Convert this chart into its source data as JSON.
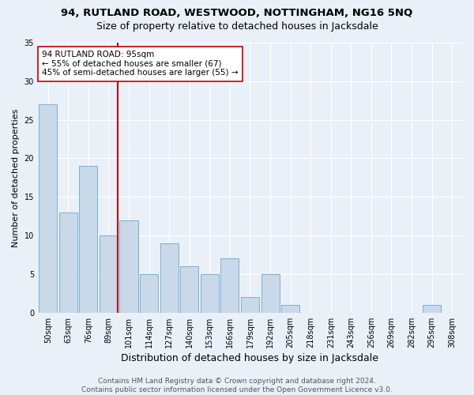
{
  "title1": "94, RUTLAND ROAD, WESTWOOD, NOTTINGHAM, NG16 5NQ",
  "title2": "Size of property relative to detached houses in Jacksdale",
  "xlabel": "Distribution of detached houses by size in Jacksdale",
  "ylabel": "Number of detached properties",
  "categories": [
    "50sqm",
    "63sqm",
    "76sqm",
    "89sqm",
    "101sqm",
    "114sqm",
    "127sqm",
    "140sqm",
    "153sqm",
    "166sqm",
    "179sqm",
    "192sqm",
    "205sqm",
    "218sqm",
    "231sqm",
    "243sqm",
    "256sqm",
    "269sqm",
    "282sqm",
    "295sqm",
    "308sqm"
  ],
  "values": [
    27,
    13,
    19,
    10,
    12,
    5,
    9,
    6,
    5,
    7,
    2,
    5,
    1,
    0,
    0,
    0,
    0,
    0,
    0,
    1,
    0
  ],
  "bar_color": "#c9d9ea",
  "bar_edge_color": "#7bafd4",
  "highlight_color": "#c00000",
  "annotation_text": "94 RUTLAND ROAD: 95sqm\n← 55% of detached houses are smaller (67)\n45% of semi-detached houses are larger (55) →",
  "annotation_box_color": "white",
  "annotation_box_edge": "#c00000",
  "vline_x": 3.45,
  "ylim": [
    0,
    35
  ],
  "yticks": [
    0,
    5,
    10,
    15,
    20,
    25,
    30,
    35
  ],
  "footnote": "Contains HM Land Registry data © Crown copyright and database right 2024.\nContains public sector information licensed under the Open Government Licence v3.0.",
  "background_color": "#eaf0f8",
  "plot_bg_color": "#eaf0f8",
  "grid_color": "white",
  "title1_fontsize": 9.5,
  "title2_fontsize": 9,
  "xlabel_fontsize": 9,
  "ylabel_fontsize": 8,
  "tick_fontsize": 7,
  "annotation_fontsize": 7.5,
  "footnote_fontsize": 6.5
}
